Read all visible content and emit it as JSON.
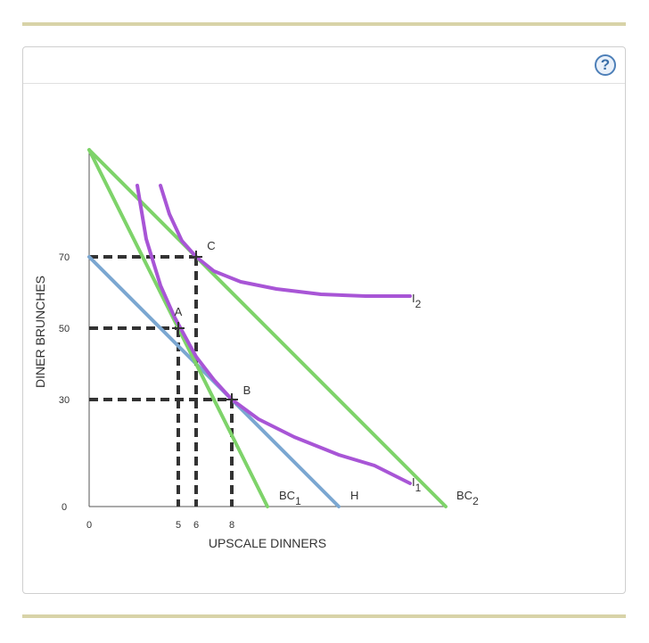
{
  "help_icon": "?",
  "chart_data": {
    "type": "line",
    "xlabel": "UPSCALE DINNERS",
    "ylabel": "DINER BRUNCHES",
    "xlim": [
      0,
      20
    ],
    "ylim": [
      0,
      100
    ],
    "x_ticks": [
      0,
      5,
      6,
      8
    ],
    "y_ticks": [
      0,
      30,
      50,
      70
    ],
    "colors": {
      "BC1": "#7ed36a",
      "BC2": "#7ed36a",
      "H": "#7ba7d1",
      "I1": "#a855d6",
      "I2": "#a855d6",
      "guides": "#333333"
    },
    "series": [
      {
        "name": "BC1",
        "label": "BC",
        "sub": "1",
        "x": [
          0,
          10
        ],
        "y": [
          100,
          0
        ]
      },
      {
        "name": "H",
        "label": "H",
        "x": [
          0,
          14
        ],
        "y": [
          70,
          0
        ]
      },
      {
        "name": "BC2",
        "label": "BC",
        "sub": "2",
        "x": [
          0,
          20
        ],
        "y": [
          100,
          0
        ]
      },
      {
        "name": "I1",
        "label": "I",
        "sub": "1",
        "x": [
          2.7,
          3.2,
          4,
          4.8,
          6,
          7,
          8,
          9.5,
          11.5,
          14,
          16,
          18
        ],
        "y": [
          90,
          75,
          62,
          53,
          42,
          35.5,
          30,
          24.5,
          19.5,
          14.5,
          11.5,
          6.5
        ]
      },
      {
        "name": "I2",
        "label": "I",
        "sub": "2",
        "x": [
          4,
          4.5,
          5.2,
          6,
          7,
          8.5,
          10.5,
          13,
          15.5,
          18
        ],
        "y": [
          90,
          82,
          74.5,
          70,
          66,
          63,
          61,
          59.5,
          59,
          59
        ]
      }
    ],
    "points": [
      {
        "label": "A",
        "x": 5,
        "y": 50
      },
      {
        "label": "B",
        "x": 8,
        "y": 30
      },
      {
        "label": "C",
        "x": 6,
        "y": 70
      }
    ]
  }
}
